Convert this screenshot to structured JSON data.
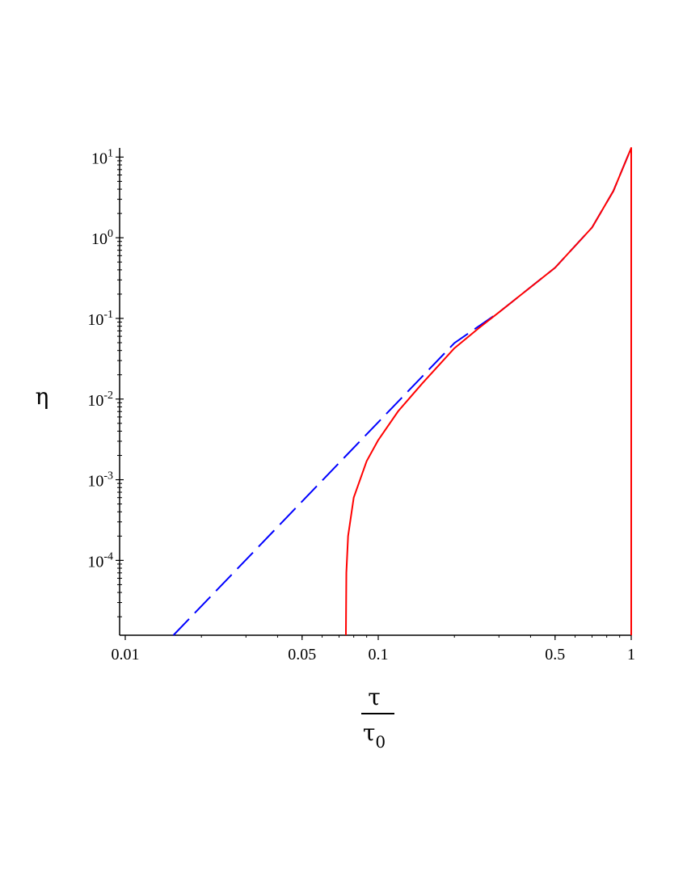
{
  "chart_data": {
    "type": "line",
    "xscale": "log",
    "yscale": "log",
    "xlim": [
      0.0095,
      1.0
    ],
    "ylim": [
      1.18e-05,
      13
    ],
    "xticks": [
      {
        "value": 0.01,
        "label": "0.01"
      },
      {
        "value": 0.05,
        "label": "0.05"
      },
      {
        "value": 0.1,
        "label": "0.1"
      },
      {
        "value": 0.5,
        "label": "0.5"
      },
      {
        "value": 1,
        "label": "1"
      }
    ],
    "yticks": [
      {
        "value": 10,
        "base": "10",
        "exp": "1"
      },
      {
        "value": 1,
        "base": "10",
        "exp": "0"
      },
      {
        "value": 0.1,
        "base": "10",
        "exp": "-1"
      },
      {
        "value": 0.01,
        "base": "10",
        "exp": "-2"
      },
      {
        "value": 0.001,
        "base": "10",
        "exp": "-3"
      },
      {
        "value": 0.0001,
        "base": "10",
        "exp": "-4"
      }
    ],
    "xlabel": {
      "numerator": "τ",
      "denominator_base": "τ",
      "denominator_sub": "0"
    },
    "ylabel": "η",
    "grid": false,
    "series": [
      {
        "style": "dashed",
        "color": "#0000ff",
        "points": [
          [
            0.0155,
            1.18e-05
          ],
          [
            0.2,
            0.0495
          ],
          [
            0.3,
            0.119
          ],
          [
            0.5,
            0.425
          ],
          [
            0.7,
            1.34
          ],
          [
            0.85,
            3.8
          ],
          [
            1.0,
            13
          ]
        ]
      },
      {
        "style": "solid",
        "color": "#ff0000",
        "points": [
          [
            0.0745,
            1.18e-05
          ],
          [
            0.0748,
            7e-05
          ],
          [
            0.076,
            0.0002
          ],
          [
            0.08,
            0.0006
          ],
          [
            0.09,
            0.0017
          ],
          [
            0.1,
            0.0031
          ],
          [
            0.12,
            0.0071
          ],
          [
            0.15,
            0.0159
          ],
          [
            0.2,
            0.0427
          ],
          [
            0.25,
            0.076
          ],
          [
            0.3,
            0.119
          ],
          [
            0.5,
            0.425
          ],
          [
            0.7,
            1.34
          ],
          [
            0.85,
            3.8
          ],
          [
            1.0,
            13
          ],
          [
            1.0,
            1.18e-05
          ]
        ]
      }
    ]
  }
}
